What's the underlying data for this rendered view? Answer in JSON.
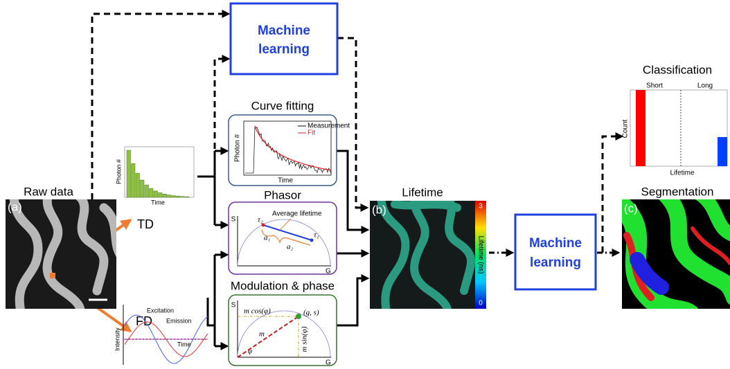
{
  "raw_data": {
    "title": "Raw data",
    "panel": "(a)",
    "td": "TD",
    "fd": "FD"
  },
  "td_plot": {
    "y_label": "Photon #",
    "x_label": "Time"
  },
  "fd_plot": {
    "y_label": "Intensity",
    "excitation": "Excitation",
    "emission": "Emission",
    "x_label": "Time"
  },
  "ml_top": {
    "line1": "Machine",
    "line2": "learning"
  },
  "curve_fitting": {
    "title": "Curve fitting",
    "y_label": "Photon #",
    "x_label": "Time",
    "legend": [
      "Measurement",
      "Fit"
    ]
  },
  "phasor": {
    "title": "Phasor",
    "y_axis": "S",
    "x_axis": "G",
    "annotation": "Average lifetime",
    "tau2": "τ₂",
    "tau1": "τ₁",
    "a1": "a₁",
    "a2": "a₂"
  },
  "modulation": {
    "title": "Modulation & phase",
    "y_axis": "S",
    "x_axis": "G",
    "cos": "m cos(φ)",
    "point": "(g, s)",
    "m": "m",
    "sin": "m sin(φ)",
    "phi": "φ"
  },
  "lifetime": {
    "title": "Lifetime",
    "panel": "(b)",
    "scale_max": "3",
    "scale_min": "0",
    "colorbar_label": "Lifetime (ns)"
  },
  "ml_right": {
    "line1": "Machine",
    "line2": "learning"
  },
  "classification": {
    "title": "Classification",
    "short": "Short",
    "long": "Long",
    "y_label": "Count",
    "x_label": "Lifetime"
  },
  "segmentation": {
    "title": "Segmentation",
    "panel": "(c)"
  }
}
